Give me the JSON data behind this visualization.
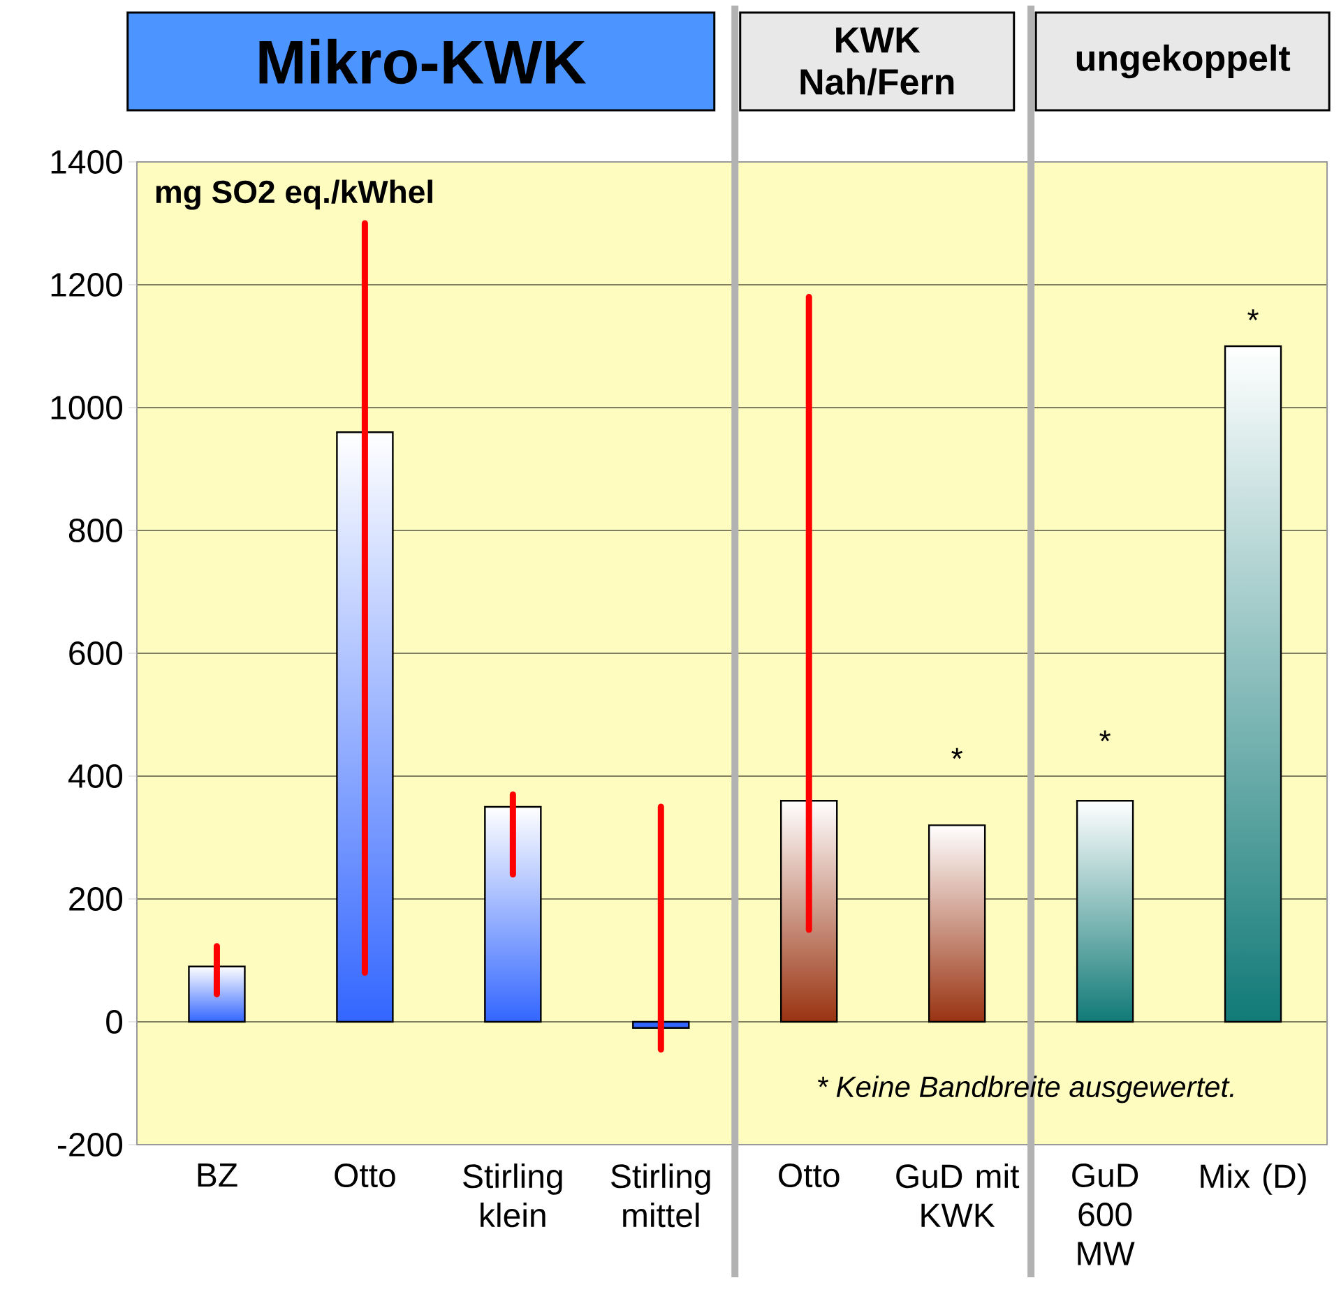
{
  "chart_data": {
    "type": "bar",
    "ylabel": "mg SO2 eq./kWhel",
    "categories": [
      "BZ",
      "Otto",
      "Stirling klein",
      "Stirling mittel",
      "Otto",
      "GuD mit KWK",
      "GuD 600 MW",
      "Mix (D)"
    ],
    "values": [
      90,
      960,
      350,
      -10,
      360,
      320,
      360,
      1100
    ],
    "colors": [
      "#3366ff",
      "#3366ff",
      "#3366ff",
      "#3366ff",
      "#993311",
      "#993311",
      "#117a77",
      "#117a77"
    ],
    "errors": [
      [
        45,
        123
      ],
      [
        80,
        1300
      ],
      [
        240,
        370
      ],
      [
        -45,
        350
      ],
      [
        150,
        1180
      ],
      null,
      null,
      null
    ],
    "ylim": [
      -200,
      1400
    ],
    "yticks": [
      -200,
      0,
      200,
      400,
      600,
      800,
      1000,
      1200,
      1400
    ],
    "grid": "y",
    "annotations": [
      "Mikro-KWK",
      "KWK Nah/Fern",
      "ungekoppelt",
      "* Keine Bandbreite ausgewertet.",
      "*",
      "*",
      "*"
    ]
  }
}
